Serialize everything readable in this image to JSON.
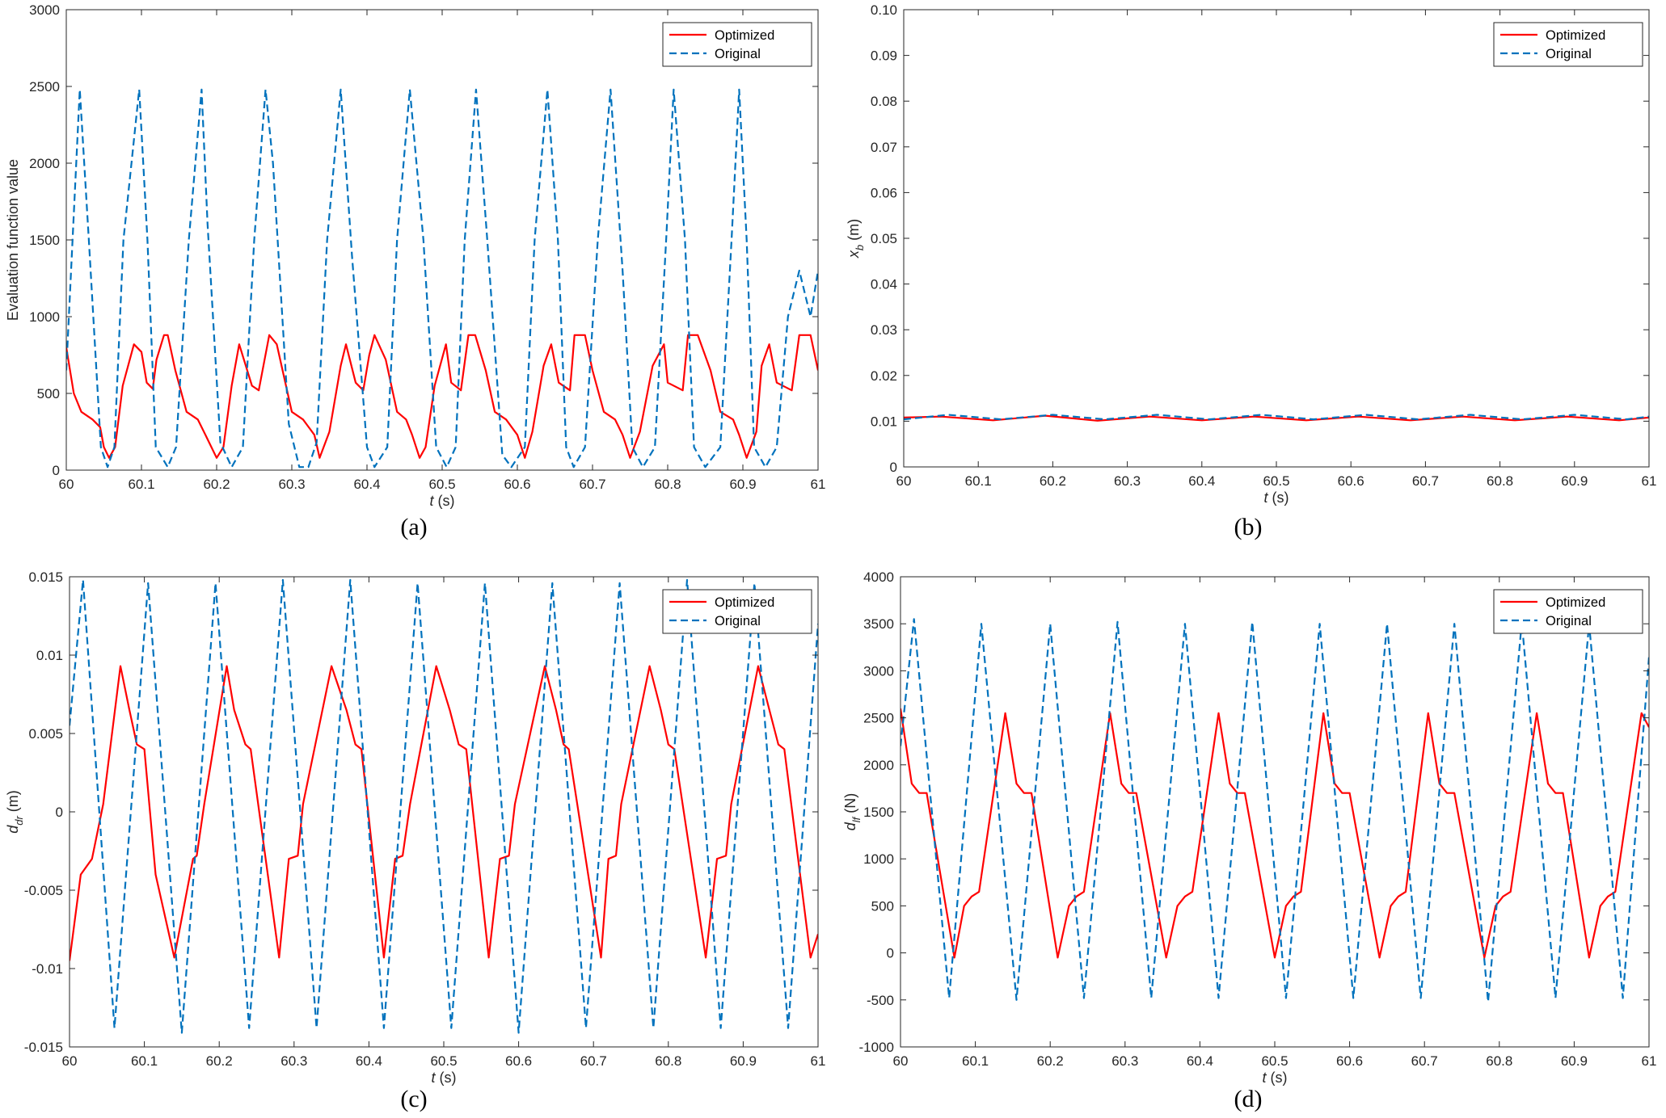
{
  "colors": {
    "optimized": "#ff0000",
    "original": "#0072bd"
  },
  "panel_labels": [
    "(a)",
    "(b)",
    "(c)",
    "(d)"
  ],
  "chart_data": [
    {
      "type": "line",
      "panel": "(a)",
      "xlabel": {
        "italic": "t",
        "rest": " (s)"
      },
      "ylabel": {
        "main": "Evaluation function value",
        "sub": "",
        "unit": ""
      },
      "xlim": [
        60,
        61
      ],
      "ylim": [
        0,
        3000
      ],
      "xticks": [
        60,
        60.1,
        60.2,
        60.3,
        60.4,
        60.5,
        60.6,
        60.7,
        60.8,
        60.9,
        61
      ],
      "yticks": [
        0,
        500,
        1000,
        1500,
        2000,
        2500,
        3000
      ],
      "ytick_labels": [
        "0",
        "500",
        "1000",
        "1500",
        "2000",
        "2500",
        "3000"
      ],
      "legend": {
        "position": "top-right",
        "entries": [
          "Optimized",
          "Original"
        ]
      },
      "series": [
        {
          "name": "Optimized",
          "style": "solid",
          "color": "#ff0000",
          "x": [
            60,
            60.01,
            60.02,
            60.035,
            60.045,
            60.05,
            60.057,
            60.065,
            60.075,
            60.09,
            60.1,
            60.107,
            60.115,
            60.12,
            60.13,
            60.135,
            60.145,
            60.16,
            60.175,
            60.185,
            60.2,
            60.209,
            60.22,
            60.23,
            60.247,
            60.256,
            60.27,
            60.28,
            60.3,
            60.315,
            60.33,
            60.337,
            60.35,
            60.365,
            60.372,
            60.385,
            60.395,
            60.403,
            60.41,
            60.425,
            60.44,
            60.452,
            60.46,
            60.47,
            60.478,
            60.49,
            60.505,
            60.512,
            60.525,
            60.535,
            60.544,
            60.558,
            60.57,
            60.585,
            60.6,
            60.61,
            60.62,
            60.635,
            60.645,
            60.655,
            60.67,
            60.676,
            60.69,
            60.7,
            60.7,
            60.715,
            60.73,
            60.74,
            60.75,
            60.763,
            60.78,
            60.795,
            60.8,
            60.82,
            60.827,
            60.84,
            60.857,
            60.87,
            60.887,
            60.895,
            60.905,
            60.918,
            60.925,
            60.935,
            60.945,
            60.965,
            60.975,
            60.99,
            61
          ],
          "y": [
            800,
            500,
            380,
            330,
            280,
            150,
            80,
            150,
            550,
            820,
            770,
            570,
            530,
            720,
            880,
            880,
            650,
            380,
            330,
            230,
            80,
            150,
            550,
            820,
            550,
            520,
            880,
            820,
            380,
            330,
            230,
            80,
            250,
            680,
            820,
            570,
            520,
            750,
            880,
            720,
            380,
            330,
            230,
            80,
            150,
            550,
            820,
            570,
            520,
            880,
            880,
            650,
            380,
            330,
            230,
            80,
            250,
            680,
            820,
            570,
            520,
            880,
            880,
            650,
            650,
            380,
            330,
            230,
            80,
            250,
            680,
            820,
            570,
            520,
            880,
            880,
            650,
            380,
            330,
            230,
            80,
            250,
            680,
            820,
            570,
            520,
            880,
            880,
            650
          ]
        },
        {
          "name": "Original",
          "style": "dashed",
          "color": "#0072bd",
          "x": [
            60,
            60.018,
            60.03,
            60.046,
            60.055,
            60.064,
            60.076,
            60.097,
            60.108,
            60.119,
            60.135,
            60.146,
            60.163,
            60.18,
            60.188,
            60.205,
            60.22,
            60.235,
            60.25,
            60.265,
            60.275,
            60.296,
            60.31,
            60.322,
            60.333,
            60.347,
            60.365,
            60.38,
            60.4,
            60.41,
            60.427,
            60.44,
            60.457,
            60.475,
            60.492,
            60.506,
            60.518,
            60.53,
            60.545,
            60.56,
            60.58,
            60.592,
            60.61,
            60.623,
            60.64,
            60.654,
            60.665,
            60.675,
            60.69,
            60.707,
            60.724,
            60.74,
            60.753,
            60.767,
            60.783,
            60.798,
            60.808,
            60.823,
            60.835,
            60.85,
            60.87,
            60.885,
            60.895,
            60.905,
            60.915,
            60.93,
            60.945,
            60.96,
            60.975,
            60.99,
            61
          ],
          "y": [
            650,
            2480,
            1500,
            150,
            20,
            150,
            1500,
            2480,
            1500,
            150,
            20,
            150,
            1500,
            2480,
            1600,
            180,
            20,
            150,
            1500,
            2480,
            2000,
            300,
            20,
            20,
            180,
            1500,
            2480,
            1400,
            150,
            20,
            150,
            1500,
            2480,
            1500,
            150,
            20,
            150,
            1500,
            2480,
            1500,
            100,
            20,
            150,
            1500,
            2480,
            1500,
            150,
            20,
            150,
            1500,
            2480,
            1300,
            150,
            20,
            150,
            1500,
            2480,
            1500,
            150,
            20,
            150,
            1500,
            2480,
            1500,
            150,
            20,
            150,
            1000,
            1300,
            1000,
            1300
          ]
        }
      ]
    },
    {
      "type": "line",
      "panel": "(b)",
      "xlabel": {
        "italic": "t",
        "rest": " (s)"
      },
      "ylabel": {
        "main": "x",
        "sub": "b",
        "unit": " (m)"
      },
      "xlim": [
        60,
        61
      ],
      "ylim": [
        0,
        0.1
      ],
      "xticks": [
        60,
        60.1,
        60.2,
        60.3,
        60.4,
        60.5,
        60.6,
        60.7,
        60.8,
        60.9,
        61
      ],
      "yticks": [
        0,
        0.01,
        0.02,
        0.03,
        0.04,
        0.05,
        0.06,
        0.07,
        0.08,
        0.09,
        0.1
      ],
      "ytick_labels": [
        "0",
        "0.01",
        "0.02",
        "0.03",
        "0.04",
        "0.05",
        "0.06",
        "0.07",
        "0.08",
        "0.09",
        "0.10"
      ],
      "legend": {
        "position": "top-right",
        "entries": [
          "Optimized",
          "Original"
        ]
      },
      "series": [
        {
          "name": "Optimized",
          "style": "solid",
          "color": "#ff0000",
          "x": [
            60,
            60.05,
            60.12,
            60.19,
            60.26,
            60.33,
            60.4,
            60.47,
            60.54,
            60.61,
            60.68,
            60.75,
            60.82,
            60.89,
            60.96,
            61
          ],
          "y": [
            0.0108,
            0.011,
            0.0102,
            0.0112,
            0.0101,
            0.011,
            0.0102,
            0.011,
            0.0102,
            0.011,
            0.0102,
            0.011,
            0.0102,
            0.011,
            0.0102,
            0.0108
          ]
        },
        {
          "name": "Original",
          "style": "dashed",
          "color": "#0072bd",
          "x": [
            60,
            60.06,
            60.13,
            60.2,
            60.27,
            60.34,
            60.41,
            60.48,
            60.55,
            60.62,
            60.69,
            60.76,
            60.83,
            60.9,
            60.97,
            61
          ],
          "y": [
            0.0104,
            0.0114,
            0.0104,
            0.0114,
            0.0104,
            0.0114,
            0.0104,
            0.0114,
            0.0104,
            0.0114,
            0.0104,
            0.0114,
            0.0104,
            0.0114,
            0.0104,
            0.011
          ]
        }
      ]
    },
    {
      "type": "line",
      "panel": "(c)",
      "xlabel": {
        "italic": "t",
        "rest": " (s)"
      },
      "ylabel": {
        "main": "d",
        "sub": "dr",
        "unit": " (m)"
      },
      "xlim": [
        60,
        61
      ],
      "ylim": [
        -0.015,
        0.015
      ],
      "xticks": [
        60,
        60.1,
        60.2,
        60.3,
        60.4,
        60.5,
        60.6,
        60.7,
        60.8,
        60.9,
        61
      ],
      "yticks": [
        -0.015,
        -0.01,
        -0.005,
        0,
        0.005,
        0.01,
        0.015
      ],
      "ytick_labels": [
        "-0.015",
        "-0.01",
        "-0.005",
        "0",
        "0.005",
        "0.01",
        "0.015"
      ],
      "legend": {
        "position": "top-right",
        "entries": [
          "Optimized",
          "Original"
        ]
      },
      "series": [
        {
          "name": "Optimized",
          "style": "solid",
          "color": "#ff0000",
          "x": [
            60,
            60.015,
            60.03,
            60.045,
            60.068,
            60.08,
            60.09,
            60.1,
            60.115,
            60.14,
            60.165,
            60.17,
            60.18,
            60.21,
            60.22,
            60.235,
            60.242,
            60.28,
            60.293,
            60.305,
            60.312,
            60.35,
            60.37,
            60.382,
            60.39,
            60.42,
            60.435,
            60.445,
            60.455,
            60.49,
            60.508,
            60.52,
            60.53,
            60.56,
            60.575,
            60.587,
            60.595,
            60.635,
            60.65,
            60.66,
            60.667,
            60.71,
            60.72,
            60.73,
            60.737,
            60.775,
            60.79,
            60.8,
            60.808,
            60.85,
            60.865,
            60.877,
            60.884,
            60.92,
            60.935,
            60.947,
            60.955,
            60.99,
            61
          ],
          "y": [
            -0.0095,
            -0.004,
            -0.003,
            0.0005,
            0.0093,
            0.0065,
            0.0043,
            0.004,
            -0.004,
            -0.0093,
            -0.003,
            -0.0028,
            0.0005,
            0.0093,
            0.0065,
            0.0043,
            0.004,
            -0.0093,
            -0.003,
            -0.0028,
            0.0005,
            0.0093,
            0.0065,
            0.0043,
            0.004,
            -0.0093,
            -0.003,
            -0.0028,
            0.0005,
            0.0093,
            0.0065,
            0.0043,
            0.004,
            -0.0093,
            -0.003,
            -0.0028,
            0.0005,
            0.0093,
            0.0065,
            0.0043,
            0.004,
            -0.0093,
            -0.003,
            -0.0028,
            0.0005,
            0.0093,
            0.0065,
            0.0043,
            0.004,
            -0.0093,
            -0.003,
            -0.0028,
            0.0005,
            0.0093,
            0.0065,
            0.0043,
            0.004,
            -0.0093,
            -0.0078
          ]
        },
        {
          "name": "Original",
          "style": "dashed",
          "color": "#0072bd",
          "x": [
            60,
            60.018,
            60.06,
            60.105,
            60.15,
            60.195,
            60.24,
            60.285,
            60.33,
            60.375,
            60.42,
            60.465,
            60.51,
            60.555,
            60.6,
            60.645,
            60.69,
            60.735,
            60.78,
            60.825,
            60.87,
            60.915,
            60.96,
            61
          ],
          "y": [
            0.0055,
            0.0148,
            -0.0138,
            0.0146,
            -0.0141,
            0.0146,
            -0.0138,
            0.0148,
            -0.0138,
            0.0148,
            -0.0138,
            0.0146,
            -0.0138,
            0.0146,
            -0.0141,
            0.0146,
            -0.0138,
            0.0146,
            -0.0138,
            0.0148,
            -0.0138,
            0.0146,
            -0.0138,
            0.012
          ]
        }
      ]
    },
    {
      "type": "line",
      "panel": "(d)",
      "xlabel": {
        "italic": "t",
        "rest": " (s)"
      },
      "ylabel": {
        "main": "d",
        "sub": "lf",
        "unit": " (N)"
      },
      "xlim": [
        60,
        61
      ],
      "ylim": [
        -1000,
        4000
      ],
      "xticks": [
        60,
        60.1,
        60.2,
        60.3,
        60.4,
        60.5,
        60.6,
        60.7,
        60.8,
        60.9,
        61
      ],
      "yticks": [
        -1000,
        -500,
        0,
        500,
        1000,
        1500,
        2000,
        2500,
        3000,
        3500,
        4000
      ],
      "ytick_labels": [
        "-1000",
        "-500",
        "0",
        "500",
        "1000",
        "1500",
        "2000",
        "2500",
        "3000",
        "3500",
        "4000"
      ],
      "legend": {
        "position": "top-right",
        "entries": [
          "Optimized",
          "Original"
        ]
      },
      "series": [
        {
          "name": "Optimized",
          "style": "solid",
          "color": "#ff0000",
          "x": [
            60,
            60.015,
            60.025,
            60.035,
            60.072,
            60.085,
            60.095,
            60.105,
            60.14,
            60.155,
            60.165,
            60.175,
            60.21,
            60.225,
            60.235,
            60.245,
            60.28,
            60.295,
            60.305,
            60.315,
            60.355,
            60.37,
            60.38,
            60.39,
            60.425,
            60.44,
            60.45,
            60.46,
            60.5,
            60.515,
            60.525,
            60.535,
            60.565,
            60.58,
            60.59,
            60.6,
            60.64,
            60.655,
            60.665,
            60.675,
            60.705,
            60.72,
            60.73,
            60.74,
            60.78,
            60.795,
            60.805,
            60.815,
            60.85,
            60.865,
            60.875,
            60.885,
            60.92,
            60.935,
            60.945,
            60.955,
            60.99,
            61
          ],
          "y": [
            2600,
            1800,
            1700,
            1700,
            -50,
            500,
            600,
            650,
            2550,
            1800,
            1700,
            1700,
            -50,
            500,
            600,
            650,
            2550,
            1800,
            1700,
            1700,
            -50,
            500,
            600,
            650,
            2550,
            1800,
            1700,
            1700,
            -50,
            500,
            600,
            650,
            2550,
            1800,
            1700,
            1700,
            -50,
            500,
            600,
            650,
            2550,
            1800,
            1700,
            1700,
            -50,
            500,
            600,
            650,
            2550,
            1800,
            1700,
            1700,
            -50,
            500,
            600,
            650,
            2550,
            2400
          ]
        },
        {
          "name": "Original",
          "style": "dashed",
          "color": "#0072bd",
          "x": [
            60,
            60.018,
            60.065,
            60.108,
            60.155,
            60.2,
            60.245,
            60.29,
            60.335,
            60.38,
            60.425,
            60.47,
            60.515,
            60.56,
            60.605,
            60.65,
            60.695,
            60.74,
            60.785,
            60.83,
            60.875,
            60.92,
            60.965,
            61
          ],
          "y": [
            2200,
            3550,
            -480,
            3500,
            -500,
            3500,
            -480,
            3520,
            -480,
            3500,
            -480,
            3520,
            -480,
            3500,
            -480,
            3500,
            -480,
            3500,
            -520,
            3520,
            -480,
            3500,
            -480,
            3150
          ]
        }
      ]
    }
  ]
}
